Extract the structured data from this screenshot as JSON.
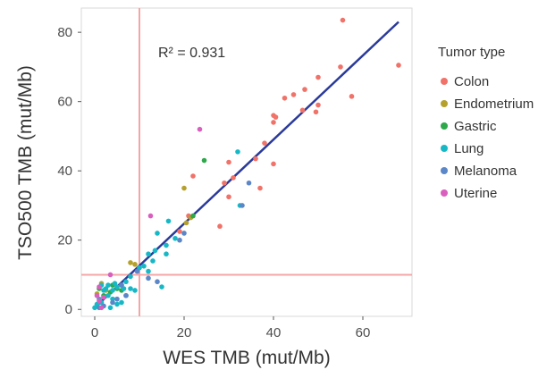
{
  "chart_data": {
    "type": "scatter",
    "xlabel": "WES TMB  (mut/Mb)",
    "ylabel": "TSO500 TMB  (mut/Mb)",
    "xlim": [
      -3,
      71
    ],
    "ylim": [
      -2,
      87
    ],
    "x_ticks": [
      "0",
      "20",
      "40",
      "60"
    ],
    "x_tick_values": [
      0,
      20,
      40,
      60
    ],
    "y_ticks": [
      "0",
      "20",
      "40",
      "60",
      "80"
    ],
    "y_tick_values": [
      0,
      20,
      40,
      60,
      80
    ],
    "annotation": "R² = 0.931",
    "grid": false,
    "reference_lines": {
      "vertical_x": 10,
      "horizontal_y": 10,
      "color": "#f4a6a6"
    },
    "fit_line": {
      "x": [
        0,
        68
      ],
      "y": [
        0.5,
        83
      ],
      "color": "#2a3a9a"
    },
    "legend": {
      "title": "Tumor type",
      "position": "right"
    },
    "series": [
      {
        "name": "Colon",
        "color": "#f07268",
        "points": [
          [
            55.5,
            83.5
          ],
          [
            68,
            70.5
          ],
          [
            55,
            70
          ],
          [
            57.5,
            61.5
          ],
          [
            50,
            67
          ],
          [
            47,
            63.5
          ],
          [
            44.5,
            62
          ],
          [
            42.5,
            61
          ],
          [
            50,
            59
          ],
          [
            46.5,
            57.5
          ],
          [
            49.5,
            57
          ],
          [
            40,
            56
          ],
          [
            40.5,
            55.5
          ],
          [
            40,
            54
          ],
          [
            38,
            48
          ],
          [
            36,
            43.5
          ],
          [
            40,
            42
          ],
          [
            37,
            35
          ],
          [
            30,
            42.5
          ],
          [
            31,
            38
          ],
          [
            29,
            36.5
          ],
          [
            28,
            24
          ],
          [
            22,
            38.5
          ],
          [
            21,
            27
          ],
          [
            19,
            22.5
          ],
          [
            30,
            32.5
          ]
        ]
      },
      {
        "name": "Endometrium",
        "color": "#b5a02b",
        "points": [
          [
            20,
            35
          ],
          [
            21.5,
            26.5
          ],
          [
            20.5,
            25
          ],
          [
            8,
            13.5
          ],
          [
            9,
            13
          ],
          [
            1.5,
            7.5
          ],
          [
            2.5,
            5.5
          ],
          [
            0.5,
            4.5
          ]
        ]
      },
      {
        "name": "Gastric",
        "color": "#2da84a",
        "points": [
          [
            24.5,
            43
          ],
          [
            22,
            27
          ],
          [
            4,
            7
          ],
          [
            5,
            6
          ],
          [
            2,
            4
          ],
          [
            6,
            5.5
          ],
          [
            1,
            6
          ],
          [
            3.5,
            5
          ]
        ]
      },
      {
        "name": "Lung",
        "color": "#17b8c6",
        "points": [
          [
            32,
            45.5
          ],
          [
            32.5,
            30
          ],
          [
            16.5,
            25.5
          ],
          [
            18,
            20.5
          ],
          [
            14,
            22
          ],
          [
            16,
            18.5
          ],
          [
            13.5,
            17
          ],
          [
            12,
            16
          ],
          [
            11,
            12.5
          ],
          [
            12,
            11
          ],
          [
            13,
            14
          ],
          [
            10,
            12
          ],
          [
            8,
            9.5
          ],
          [
            7,
            8
          ],
          [
            6,
            7
          ],
          [
            5,
            6.5
          ],
          [
            4,
            5.5
          ],
          [
            3,
            7
          ],
          [
            2,
            5.5
          ],
          [
            1,
            3
          ],
          [
            0.5,
            1.5
          ],
          [
            0,
            0.5
          ],
          [
            1.5,
            2
          ],
          [
            3,
            4
          ],
          [
            4,
            3
          ],
          [
            6,
            2
          ],
          [
            7,
            4
          ],
          [
            8,
            6
          ],
          [
            9,
            5.5
          ],
          [
            5,
            1.5
          ],
          [
            3.5,
            0.5
          ],
          [
            2.5,
            6
          ],
          [
            1.5,
            7
          ],
          [
            4.5,
            7.5
          ],
          [
            6.5,
            6
          ],
          [
            15,
            6.5
          ],
          [
            16,
            16
          ]
        ]
      },
      {
        "name": "Melanoma",
        "color": "#5b86c8",
        "points": [
          [
            34.5,
            36.5
          ],
          [
            33,
            30
          ],
          [
            20,
            22
          ],
          [
            19,
            20
          ],
          [
            14,
            8
          ],
          [
            12,
            9
          ],
          [
            9.5,
            11
          ],
          [
            7,
            4
          ],
          [
            5,
            3
          ],
          [
            4,
            2
          ],
          [
            2,
            1
          ],
          [
            1,
            0.5
          ],
          [
            6,
            7
          ]
        ]
      },
      {
        "name": "Uterine",
        "color": "#d95fbf",
        "points": [
          [
            23.5,
            52
          ],
          [
            12.5,
            27
          ],
          [
            3.5,
            10
          ],
          [
            2,
            3.5
          ],
          [
            1,
            2.5
          ],
          [
            0.5,
            4
          ],
          [
            1.5,
            0.5
          ],
          [
            1,
            6.5
          ]
        ]
      }
    ]
  }
}
